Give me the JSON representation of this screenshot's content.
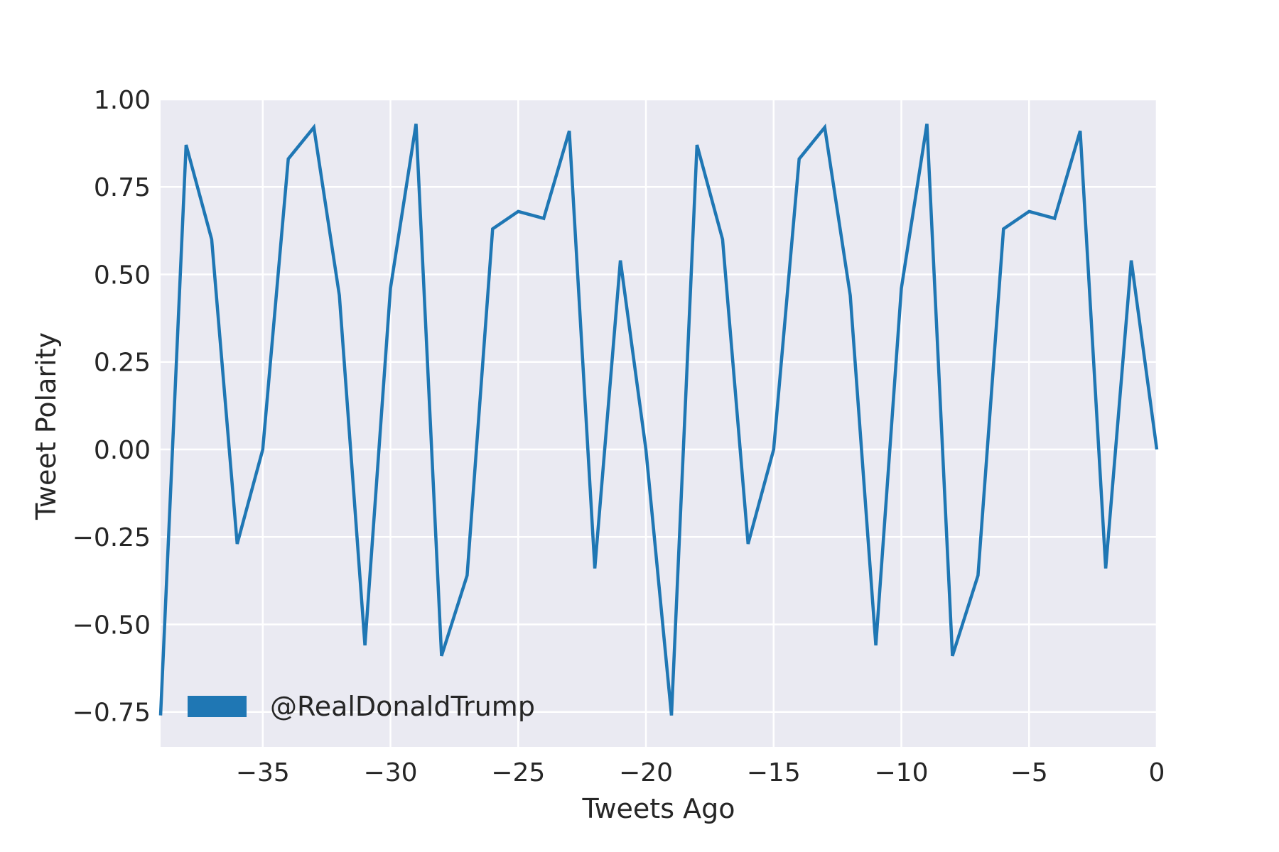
{
  "chart_data": {
    "type": "line",
    "title": "",
    "xlabel": "Tweets Ago",
    "ylabel": "Tweet Polarity",
    "xlim": [
      -39,
      0
    ],
    "ylim": [
      -0.85,
      1.0
    ],
    "xticks": [
      -35,
      -30,
      -25,
      -20,
      -15,
      -10,
      -5,
      0
    ],
    "xtick_labels": [
      "−35",
      "−30",
      "−25",
      "−20",
      "−15",
      "−10",
      "−5",
      "0"
    ],
    "yticks": [
      1.0,
      0.75,
      0.5,
      0.25,
      0.0,
      -0.25,
      -0.5,
      -0.75
    ],
    "ytick_labels": [
      "1.00",
      "0.75",
      "0.50",
      "0.25",
      "0.00",
      "−0.25",
      "−0.50",
      "−0.75"
    ],
    "grid": true,
    "background": "#eaeaf2",
    "legend": {
      "placement": "lower left"
    },
    "series": [
      {
        "name": "@RealDonaldTrump",
        "color": "#1f77b4",
        "x": [
          -39,
          -38,
          -37,
          -36,
          -35,
          -34,
          -33,
          -32,
          -31,
          -30,
          -29,
          -28,
          -27,
          -26,
          -25,
          -24,
          -23,
          -22,
          -21,
          -20,
          -19,
          -18,
          -17,
          -16,
          -15,
          -14,
          -13,
          -12,
          -11,
          -10,
          -9,
          -8,
          -7,
          -6,
          -5,
          -4,
          -3,
          -2,
          -1,
          0
        ],
        "y": [
          -0.76,
          0.87,
          0.6,
          -0.27,
          0.0,
          0.83,
          0.92,
          0.44,
          -0.56,
          0.46,
          0.93,
          -0.59,
          -0.36,
          0.63,
          0.68,
          0.66,
          0.91,
          -0.34,
          0.54,
          0.0,
          -0.76,
          0.87,
          0.6,
          -0.27,
          0.0,
          0.83,
          0.92,
          0.44,
          -0.56,
          0.46,
          0.93,
          -0.59,
          -0.36,
          0.63,
          0.68,
          0.66,
          0.91,
          -0.34,
          0.54,
          0.0
        ]
      }
    ]
  }
}
